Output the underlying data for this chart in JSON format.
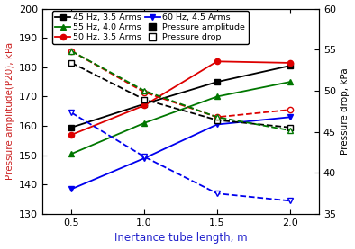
{
  "x": [
    0.5,
    1.0,
    1.5,
    2.0
  ],
  "pressure_amplitude": {
    "45Hz_3p5Arms": [
      159.5,
      167.5,
      175.0,
      180.5
    ],
    "50Hz_3p5Arms": [
      157.0,
      167.0,
      182.0,
      181.5
    ],
    "55Hz_4p0Arms": [
      150.5,
      161.0,
      170.0,
      175.0
    ],
    "60Hz_4p5Arms": [
      138.5,
      149.0,
      160.5,
      163.0
    ]
  },
  "pressure_drop": {
    "45Hz_3p5Arms": [
      181.5,
      169.0,
      162.0,
      159.5
    ],
    "50Hz_3p5Arms": [
      185.5,
      171.5,
      163.0,
      165.5
    ],
    "55Hz_4p0Arms": [
      185.5,
      172.0,
      163.0,
      158.5
    ],
    "60Hz_4p5Arms": [
      164.5,
      149.5,
      137.0,
      134.5
    ]
  },
  "colors": {
    "45Hz": "#000000",
    "50Hz": "#dd0000",
    "55Hz": "#007700",
    "60Hz": "#0000ee"
  },
  "xlabel": "Inertance tube length, m",
  "ylabel_left": "Pressure amplitude(P20), kPa",
  "ylabel_right": "Pressure drop, kPa",
  "xlim": [
    0.3,
    2.2
  ],
  "ylim_left": [
    130,
    200
  ],
  "ylim_right": [
    35,
    60
  ],
  "xticks": [
    0.5,
    1.0,
    1.5,
    2.0
  ],
  "xticklabels": [
    "0.5",
    "1.0",
    "1.5",
    "2.0"
  ],
  "yticks_left": [
    130,
    140,
    150,
    160,
    170,
    180,
    190,
    200
  ],
  "yticks_right": [
    35,
    40,
    45,
    50,
    55,
    60
  ],
  "legend": {
    "row1": [
      "45 Hz, 3.5 Arms",
      "55 Hz, 4.0 Arms"
    ],
    "row2": [
      "50 Hz, 3.5 Arms",
      "60 Hz, 4.5 Arms"
    ],
    "row3": [
      "Pressure amplitude",
      "Pressure drop"
    ]
  }
}
